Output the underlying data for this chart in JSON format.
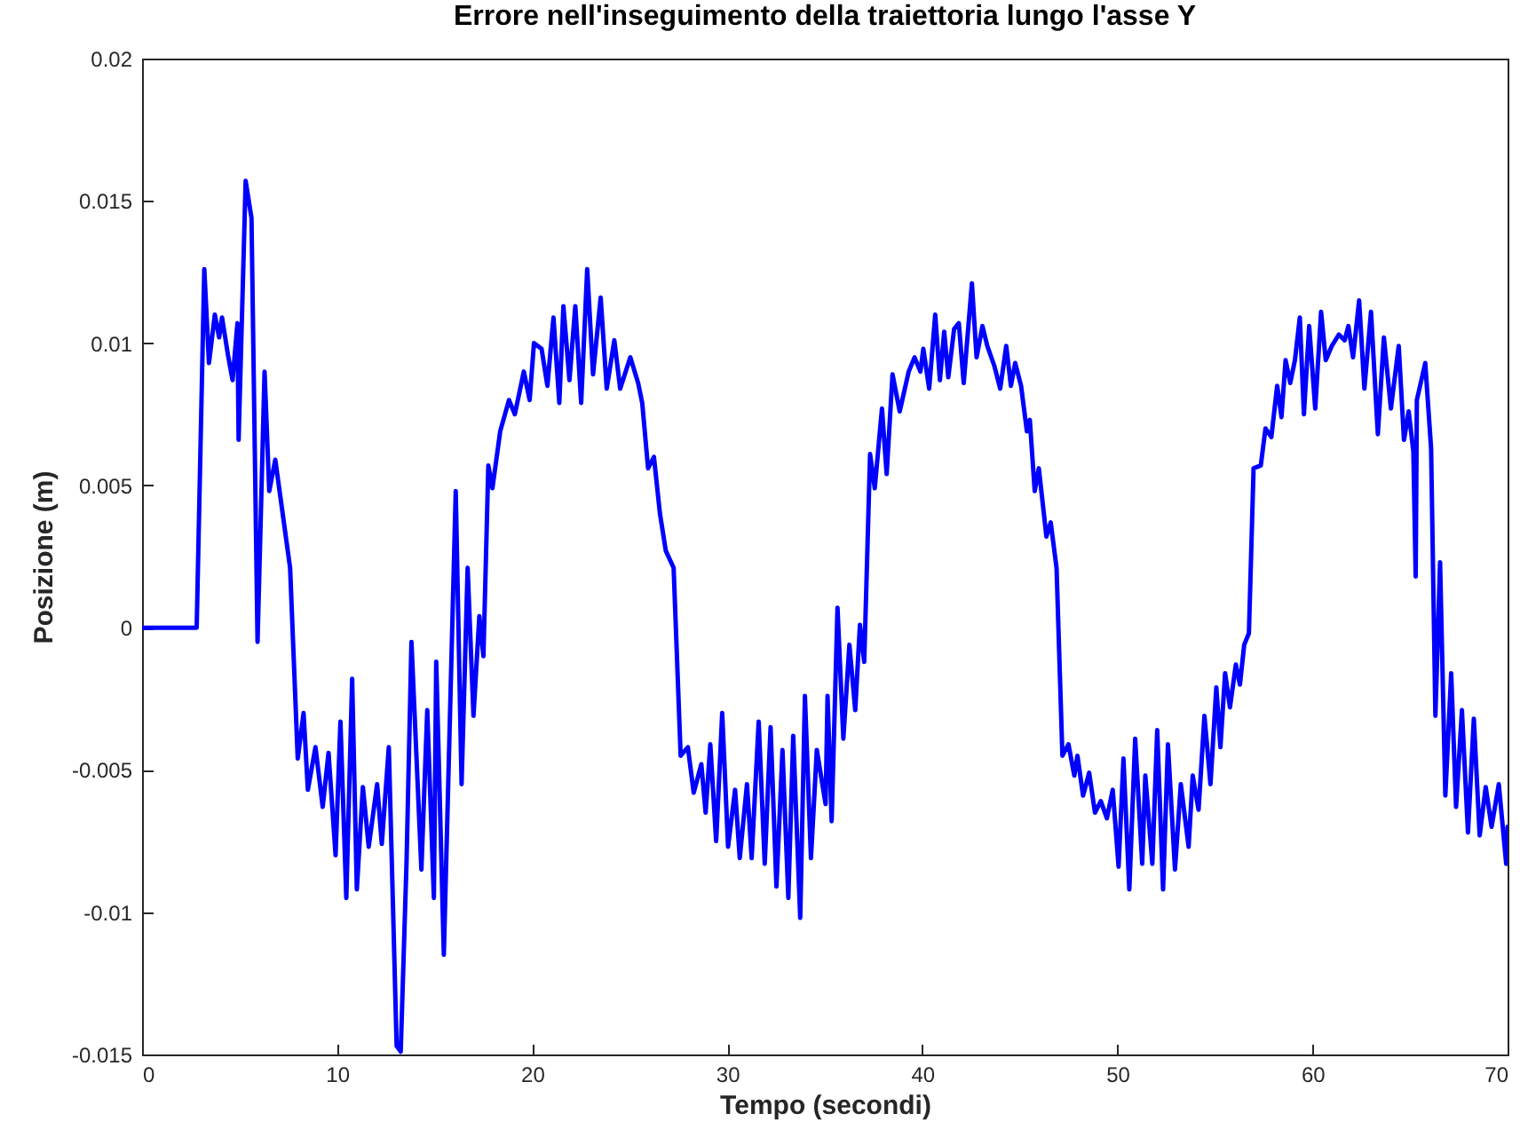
{
  "chart_data": {
    "type": "line",
    "title": "Errore nell'inseguimento della traiettoria lungo l'asse Y",
    "xlabel": "Tempo (secondi)",
    "ylabel": "Posizione (m)",
    "xlim": [
      0,
      70
    ],
    "ylim": [
      -0.015,
      0.02
    ],
    "xticks": [
      0,
      10,
      20,
      30,
      40,
      50,
      60,
      70
    ],
    "yticks": [
      -0.015,
      -0.01,
      -0.005,
      0,
      0.005,
      0.01,
      0.015,
      0.02
    ],
    "grid": false,
    "marker": "none",
    "line_style": "solid",
    "series": [
      {
        "color": "#0000ff",
        "x": [
          0,
          2.8,
          3.19,
          3.43,
          3.73,
          3.95,
          4.1,
          4.4,
          4.64,
          4.89,
          4.95,
          5.31,
          5.61,
          5.92,
          6.28,
          6.52,
          6.83,
          7.13,
          7.59,
          7.98,
          8.28,
          8.5,
          8.89,
          9.26,
          9.56,
          9.92,
          10.17,
          10.47,
          10.77,
          11.01,
          11.32,
          11.62,
          12.05,
          12.29,
          12.65,
          13.05,
          13.26,
          13.56,
          13.81,
          14.32,
          14.62,
          14.96,
          15.08,
          15.47,
          16.08,
          16.38,
          16.69,
          16.99,
          17.29,
          17.5,
          17.75,
          17.96,
          18.36,
          18.81,
          19.11,
          19.57,
          19.87,
          20.09,
          20.48,
          20.78,
          21.09,
          21.39,
          21.6,
          21.91,
          22.21,
          22.51,
          22.82,
          23.12,
          23.51,
          23.82,
          24.21,
          24.51,
          25.03,
          25.43,
          25.64,
          25.94,
          26.24,
          26.55,
          26.85,
          27.25,
          27.61,
          27.98,
          28.28,
          28.67,
          28.89,
          29.13,
          29.43,
          29.74,
          30.04,
          30.4,
          30.64,
          31.01,
          31.25,
          31.61,
          31.92,
          32.22,
          32.52,
          32.83,
          33.13,
          33.38,
          33.74,
          33.98,
          34.29,
          34.59,
          35.04,
          35.14,
          35.35,
          35.65,
          35.95,
          36.26,
          36.56,
          36.8,
          37.02,
          37.32,
          37.56,
          37.93,
          38.17,
          38.47,
          38.84,
          39.3,
          39.6,
          39.9,
          40.05,
          40.35,
          40.66,
          40.9,
          41.12,
          41.33,
          41.63,
          41.87,
          42.12,
          42.54,
          42.78,
          43.08,
          43.33,
          43.69,
          43.99,
          44.3,
          44.54,
          44.76,
          45.06,
          45.36,
          45.51,
          45.76,
          45.97,
          46.36,
          46.58,
          46.88,
          47.18,
          47.49,
          47.79,
          47.95,
          48.24,
          48.55,
          48.85,
          49.15,
          49.46,
          49.76,
          50.06,
          50.31,
          50.61,
          50.91,
          51.27,
          51.43,
          51.79,
          52.04,
          52.34,
          52.59,
          52.95,
          53.25,
          53.65,
          53.86,
          54.16,
          54.46,
          54.77,
          55.07,
          55.28,
          55.52,
          55.77,
          56.07,
          56.28,
          56.5,
          56.74,
          56.98,
          57.35,
          57.59,
          57.89,
          58.19,
          58.41,
          58.62,
          58.86,
          59.1,
          59.35,
          59.56,
          59.83,
          60.14,
          60.44,
          60.68,
          60.99,
          61.35,
          61.65,
          61.84,
          62.08,
          62.39,
          62.66,
          63,
          63.35,
          63.66,
          64.02,
          64.42,
          64.69,
          64.93,
          65.17,
          65.29,
          65.35,
          65.78,
          66.08,
          66.3,
          66.54,
          66.81,
          67.11,
          67.36,
          67.66,
          67.97,
          68.27,
          68.57,
          68.88,
          69.18,
          69.55,
          69.93,
          70
        ],
        "values": [
          0,
          0,
          0.0126,
          0.0093,
          0.011,
          0.0102,
          0.0109,
          0.0096,
          0.0087,
          0.0107,
          0.0066,
          0.0157,
          0.0144,
          -0.0005,
          0.009,
          0.0048,
          0.0059,
          0.0044,
          0.0021,
          -0.0046,
          -0.003,
          -0.0057,
          -0.0042,
          -0.0063,
          -0.0044,
          -0.008,
          -0.0033,
          -0.0095,
          -0.0018,
          -0.0092,
          -0.0056,
          -0.0077,
          -0.0055,
          -0.0076,
          -0.0042,
          -0.0147,
          -0.0149,
          -0.0082,
          -0.0005,
          -0.0085,
          -0.0029,
          -0.0095,
          -0.0012,
          -0.0115,
          0.0048,
          -0.0055,
          0.0021,
          -0.0031,
          0.0004,
          -0.001,
          0.0057,
          0.0049,
          0.0069,
          0.008,
          0.0075,
          0.009,
          0.008,
          0.01,
          0.0098,
          0.0085,
          0.0109,
          0.0079,
          0.0113,
          0.0087,
          0.0113,
          0.0079,
          0.0126,
          0.0089,
          0.0116,
          0.0084,
          0.0101,
          0.0084,
          0.0095,
          0.0086,
          0.0079,
          0.0056,
          0.006,
          0.004,
          0.0027,
          0.0021,
          -0.0045,
          -0.0042,
          -0.0058,
          -0.0048,
          -0.0065,
          -0.0041,
          -0.0075,
          -0.003,
          -0.0077,
          -0.0057,
          -0.0081,
          -0.0055,
          -0.0081,
          -0.0033,
          -0.0083,
          -0.0035,
          -0.0091,
          -0.0043,
          -0.0095,
          -0.0038,
          -0.0102,
          -0.0024,
          -0.0081,
          -0.0043,
          -0.0062,
          -0.0024,
          -0.0068,
          0.0007,
          -0.0039,
          -0.0006,
          -0.0029,
          0.0001,
          -0.0012,
          0.0061,
          0.0049,
          0.0077,
          0.0054,
          0.0089,
          0.0076,
          0.009,
          0.0095,
          0.009,
          0.0098,
          0.0084,
          0.011,
          0.0087,
          0.0104,
          0.0088,
          0.0105,
          0.0107,
          0.0086,
          0.0121,
          0.0095,
          0.0106,
          0.0099,
          0.0092,
          0.0084,
          0.0099,
          0.0085,
          0.0093,
          0.0085,
          0.0069,
          0.0073,
          0.0048,
          0.0056,
          0.0032,
          0.0037,
          0.0021,
          -0.0045,
          -0.0041,
          -0.0052,
          -0.0045,
          -0.0059,
          -0.0051,
          -0.0065,
          -0.0061,
          -0.0067,
          -0.0057,
          -0.0084,
          -0.0046,
          -0.0092,
          -0.0039,
          -0.0083,
          -0.0052,
          -0.0083,
          -0.0036,
          -0.0092,
          -0.0041,
          -0.0085,
          -0.0055,
          -0.0077,
          -0.0052,
          -0.0064,
          -0.0031,
          -0.0055,
          -0.0021,
          -0.0042,
          -0.0016,
          -0.0028,
          -0.0013,
          -0.002,
          -0.0006,
          -0.0002,
          0.0056,
          0.0057,
          0.007,
          0.0067,
          0.0085,
          0.0074,
          0.0094,
          0.0086,
          0.0094,
          0.0109,
          0.0075,
          0.0106,
          0.0077,
          0.0111,
          0.0094,
          0.0099,
          0.0103,
          0.0101,
          0.0106,
          0.0095,
          0.0115,
          0.0084,
          0.0111,
          0.0068,
          0.0102,
          0.0077,
          0.0099,
          0.0066,
          0.0076,
          0.0062,
          0.0018,
          0.008,
          0.0093,
          0.0063,
          -0.0031,
          0.0023,
          -0.0059,
          -0.0016,
          -0.0063,
          -0.0029,
          -0.0072,
          -0.0032,
          -0.0073,
          -0.0056,
          -0.007,
          -0.0055,
          -0.0083,
          -0.007
        ]
      }
    ]
  }
}
